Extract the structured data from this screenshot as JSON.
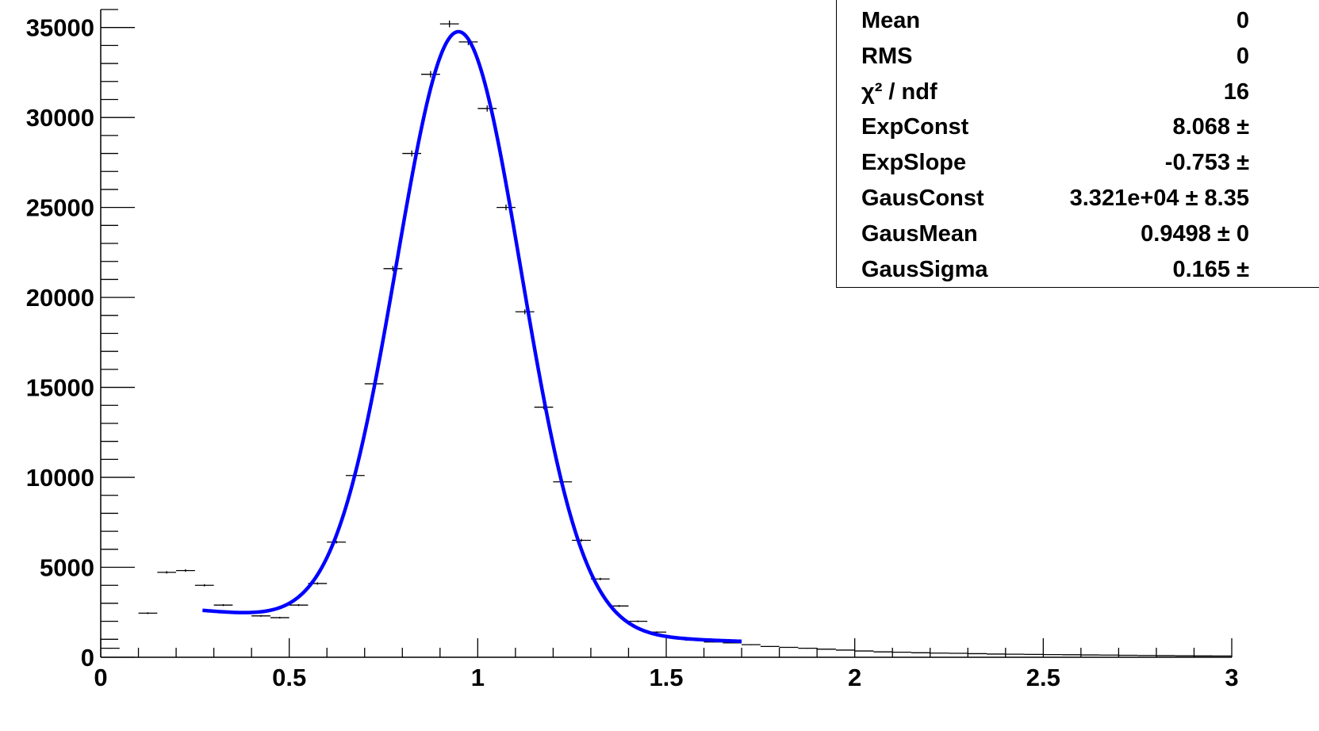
{
  "chart_data": {
    "type": "histogram",
    "xlim": [
      0,
      3
    ],
    "ylim": [
      0,
      36000
    ],
    "x_ticks": [
      0,
      0.5,
      1,
      1.5,
      2,
      2.5,
      3
    ],
    "x_tick_labels": [
      "0",
      "0.5",
      "1",
      "1.5",
      "2",
      "2.5",
      "3"
    ],
    "y_ticks": [
      0,
      5000,
      10000,
      15000,
      20000,
      25000,
      30000,
      35000
    ],
    "y_tick_labels": [
      "0",
      "5000",
      "10000",
      "15000",
      "20000",
      "25000",
      "30000",
      "35000"
    ],
    "bin_width": 0.05,
    "histogram": {
      "x": [
        0.025,
        0.075,
        0.125,
        0.175,
        0.225,
        0.275,
        0.325,
        0.375,
        0.425,
        0.475,
        0.525,
        0.575,
        0.625,
        0.675,
        0.725,
        0.775,
        0.825,
        0.875,
        0.925,
        0.975,
        1.025,
        1.075,
        1.125,
        1.175,
        1.225,
        1.275,
        1.325,
        1.375,
        1.425,
        1.475,
        1.525,
        1.575,
        1.625,
        1.675,
        1.725,
        1.775,
        1.825,
        1.875,
        1.925,
        1.975,
        2.025,
        2.075,
        2.125,
        2.175,
        2.225,
        2.275,
        2.325,
        2.375,
        2.425,
        2.475,
        2.525,
        2.575,
        2.625,
        2.675,
        2.725,
        2.775,
        2.825,
        2.875,
        2.925,
        2.975
      ],
      "y": [
        500,
        0,
        2450,
        4720,
        4820,
        4000,
        2900,
        2500,
        2300,
        2200,
        2900,
        4100,
        6400,
        10100,
        15200,
        21600,
        28000,
        32400,
        35200,
        34200,
        30500,
        25000,
        19200,
        13900,
        9750,
        6500,
        4350,
        2850,
        2000,
        1400,
        1100,
        950,
        850,
        800,
        700,
        600,
        550,
        500,
        450,
        400,
        350,
        300,
        280,
        250,
        230,
        220,
        200,
        180,
        170,
        160,
        150,
        140,
        130,
        120,
        110,
        100,
        90,
        80,
        75,
        70
      ]
    },
    "fit": {
      "function": "expo+gaus",
      "x_range": [
        0.27,
        1.7
      ],
      "ExpConst": 8.068,
      "ExpSlope": -0.753,
      "GausConst": 33210,
      "GausMean": 0.9498,
      "GausSigma": 0.165
    },
    "colors": {
      "fit_line": "#0000ff",
      "histogram": "#000000"
    }
  },
  "stats_box": {
    "rows": [
      {
        "name": "Mean",
        "value": "0"
      },
      {
        "name": "RMS",
        "value": "0"
      },
      {
        "name": "χ² / ndf",
        "value": "16"
      },
      {
        "name": "ExpConst",
        "value": "8.068 ±"
      },
      {
        "name": "ExpSlope",
        "value": "-0.753 ±"
      },
      {
        "name": "GausConst",
        "value": "3.321e+04 ± 8.35"
      },
      {
        "name": "GausMean",
        "value": "0.9498 ± 0"
      },
      {
        "name": "GausSigma",
        "value": "0.165 ±"
      }
    ]
  }
}
